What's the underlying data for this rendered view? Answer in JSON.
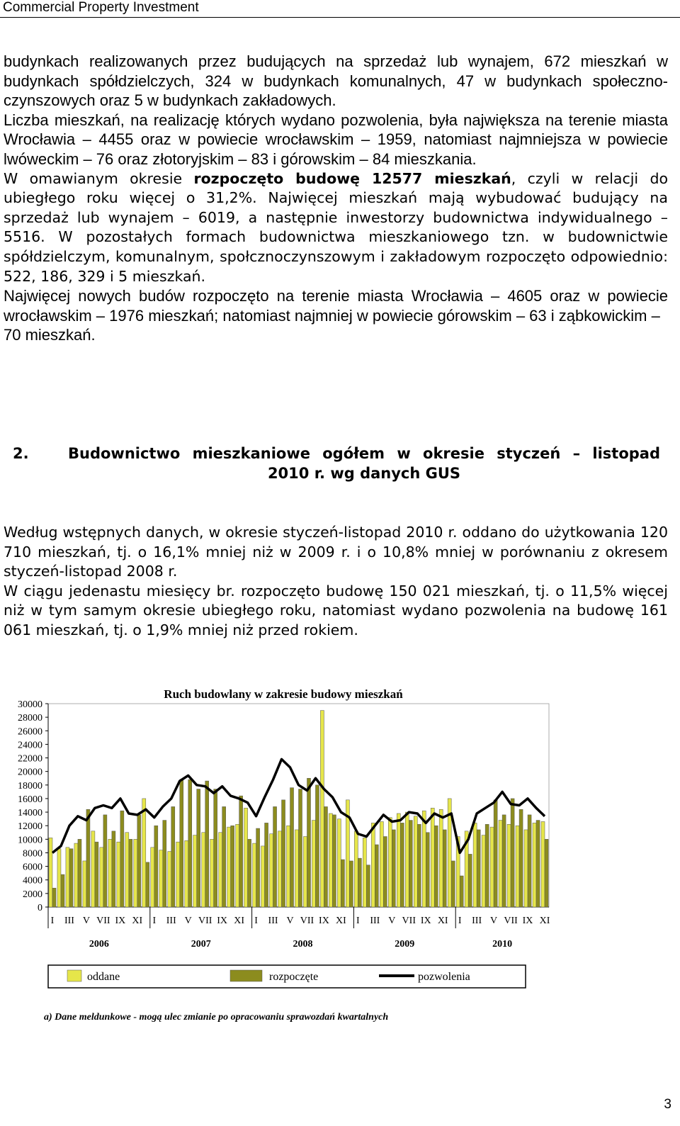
{
  "header": {
    "title": "Commercial Property Investment"
  },
  "section1": {
    "p1": "budynkach realizowanych przez budujących na sprzedaż lub wynajem, 672 mieszkań w budynkach spółdzielczych, 324 w budynkach komunalnych, 47 w budynkach społeczno-czynszowych oraz 5 w budynkach zakładowych.",
    "p2": "Liczba mieszkań, na realizację których wydano pozwolenia, była największa na terenie miasta Wrocławia – 4455 oraz w powiecie wrocławskim – 1959, natomiast najmniejsza w powiecie lwóweckim – 76 oraz złotoryjskim – 83 i górowskim – 84 mieszkania.",
    "p3": [
      "W omawianym okresie ",
      "rozpoczęto budowę 12577 mieszkań",
      ", czyli w relacji do ubiegłego roku więcej o 31,2%. Najwięcej mieszkań mają wybudować budujący na sprzedaż lub wynajem – 6019, a następnie inwestorzy budownictwa indywidualnego – 5516. W pozostałych formach budownictwa mieszkaniowego tzn. w budownictwie spółdzielczym, komunalnym, społcznoczynszowym i zakładowym rozpoczęto odpowiednio: 522, 186, 329 i 5 mieszkań."
    ],
    "p4": [
      "Najwięcej nowych budów rozpoczęto na terenie miasta Wrocławia – 4605 oraz w powiecie wrocławskim – 1976 mieszkań; natomiast najmniej w powiecie górowskim – 63 i ząbkowickim –",
      "70 mieszkań."
    ]
  },
  "section2": {
    "number": "2.",
    "heading": [
      "Budownictwo mieszkaniowe ogółem w okresie styczeń – listopad",
      "2010 r. wg danych GUS"
    ],
    "p1": "Według wstępnych danych, w okresie styczeń-listopad 2010 r. oddano do użytkowania 120 710 mieszkań, tj. o 16,1% mniej niż w 2009 r. i o 10,8% mniej w porównaniu z okresem styczeń-listopad 2008 r.",
    "p2": "W ciągu jedenastu miesięcy br. rozpoczęto budowę 150 021 mieszkań, tj. o 11,5% więcej niż w tym samym okresie ubiegłego roku, natomiast wydano pozwolenia na budowę 161 061 mieszkań, tj. o 1,9% mniej niż przed rokiem."
  },
  "chart_data": {
    "type": "bar-line",
    "title": "Ruch budowlany w zakresie budowy mieszkań",
    "categories": [
      "I",
      null,
      "III",
      null,
      "V",
      null,
      "VII",
      null,
      "IX",
      null,
      "XI",
      null,
      "I",
      null,
      "III",
      null,
      "V",
      null,
      "VII",
      null,
      "IX",
      null,
      "XI",
      null,
      "I",
      null,
      "III",
      null,
      "V",
      null,
      "VII",
      null,
      "IX",
      null,
      "XI",
      null,
      "I",
      null,
      "III",
      null,
      "V",
      null,
      "VII",
      null,
      "IX",
      null,
      "XI",
      null,
      "I",
      null,
      "III",
      null,
      "V",
      null,
      "VII",
      null,
      "IX",
      null,
      "XI"
    ],
    "years": [
      "2006",
      "2007",
      "2008",
      "2009",
      "2010"
    ],
    "series": [
      {
        "name": "oddane",
        "kind": "bar",
        "color": "#e6e64a",
        "values": [
          10200,
          8600,
          8800,
          9400,
          6800,
          11200,
          8800,
          10000,
          9600,
          11000,
          10000,
          16000,
          8800,
          8400,
          8200,
          9600,
          9800,
          10600,
          11000,
          10000,
          11000,
          11800,
          12200,
          14600,
          9400,
          9000,
          10800,
          11200,
          12000,
          11400,
          10400,
          12800,
          29000,
          13800,
          13000,
          15800,
          11200,
          10200,
          12400,
          12600,
          13200,
          13800,
          14000,
          13400,
          14200,
          14600,
          14400,
          16000,
          10400,
          11200,
          12400,
          10600,
          11800,
          12800,
          12200,
          12000,
          11400,
          12400,
          12600
        ]
      },
      {
        "name": "rozpoczęte",
        "kind": "bar",
        "color": "#8c8c1e",
        "values": [
          2800,
          4800,
          8600,
          10000,
          14400,
          9600,
          13600,
          11200,
          14200,
          10000,
          13600,
          6600,
          12000,
          12800,
          14800,
          18800,
          18800,
          17400,
          18600,
          17400,
          14800,
          12000,
          16400,
          10000,
          11600,
          12400,
          14800,
          15800,
          17600,
          17400,
          19000,
          18000,
          14800,
          13600,
          7000,
          6800,
          7200,
          6200,
          9200,
          10400,
          11400,
          12400,
          12800,
          12200,
          11000,
          12000,
          11400,
          6800,
          4600,
          7800,
          11400,
          12200,
          15800,
          13600,
          16000,
          14400,
          13600,
          12800,
          10000
        ]
      },
      {
        "name": "pozwolenia",
        "kind": "line",
        "color": "#000000",
        "values": [
          8000,
          9000,
          12000,
          13400,
          12800,
          14600,
          15000,
          14600,
          16000,
          13800,
          13600,
          14400,
          13200,
          14800,
          16000,
          18600,
          19400,
          18000,
          17800,
          16800,
          17800,
          16400,
          16000,
          15400,
          13400,
          16200,
          18800,
          21800,
          20600,
          18000,
          17200,
          19000,
          17400,
          16200,
          14000,
          13200,
          10800,
          10400,
          12000,
          13600,
          12600,
          12800,
          14000,
          13800,
          12400,
          13800,
          13200,
          13800,
          8000,
          10000,
          13800,
          14600,
          15400,
          17000,
          15200,
          15000,
          16000,
          14600,
          13400
        ]
      }
    ],
    "ylim": [
      0,
      30000
    ],
    "yticks": [
      0,
      2000,
      4000,
      6000,
      8000,
      10000,
      12000,
      14000,
      16000,
      18000,
      20000,
      22000,
      24000,
      26000,
      28000,
      30000
    ],
    "footnote": "a)   Dane meldunkowe - mogą ulec zmianie po opracowaniu sprawozdań kwartalnych"
  },
  "page_number": "3"
}
